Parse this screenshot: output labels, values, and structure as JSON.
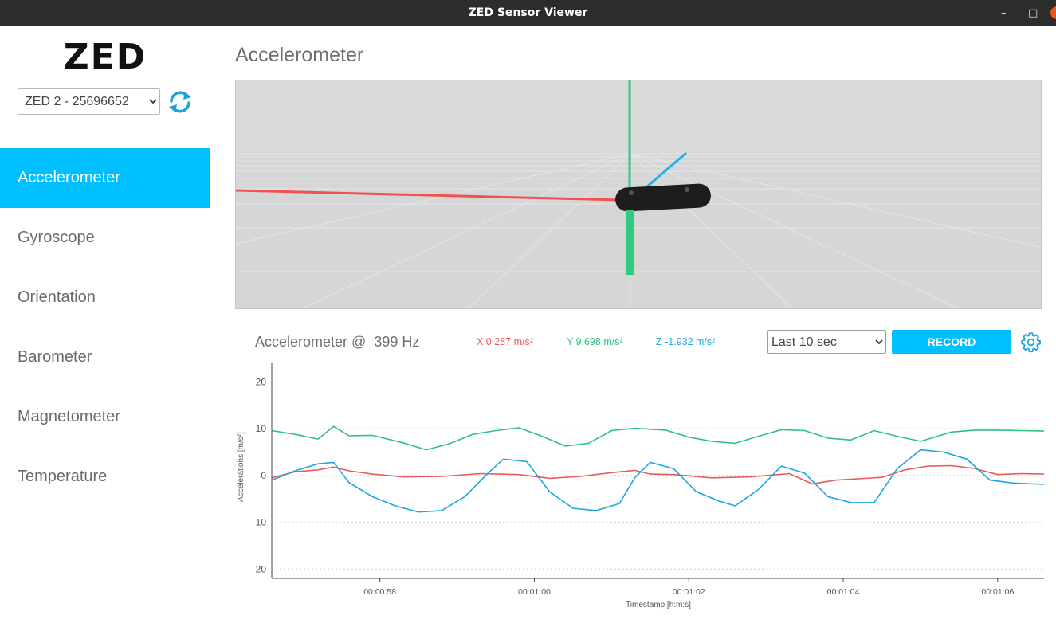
{
  "window": {
    "title": "ZED Sensor Viewer"
  },
  "sidebar": {
    "logo_text": "ZED",
    "device": {
      "selected": "ZED 2 - 25696652",
      "options": [
        "ZED 2 - 25696652"
      ]
    },
    "items": [
      {
        "label": "Accelerometer",
        "active": true
      },
      {
        "label": "Gyroscope",
        "active": false
      },
      {
        "label": "Orientation",
        "active": false
      },
      {
        "label": "Barometer",
        "active": false
      },
      {
        "label": "Magnetometer",
        "active": false
      },
      {
        "label": "Temperature",
        "active": false
      }
    ]
  },
  "main": {
    "title": "Accelerometer",
    "sensor_label": "Accelerometer @  399 Hz",
    "readouts": {
      "x": "X 0.287 m/s²",
      "y": "Y 9.698 m/s²",
      "z": "Z -1.932 m/s²"
    },
    "range": {
      "selected": "Last 10 sec",
      "options": [
        "Last 10 sec"
      ]
    },
    "record_label": "RECORD"
  },
  "colors": {
    "accent": "#00bfff",
    "x": "#e85b5b",
    "y": "#2fc17f",
    "z": "#1fa6e0"
  },
  "chart_data": {
    "type": "line",
    "xlabel": "Timestamp [h:m:s]",
    "ylabel": "Accelerations [m/s²]",
    "ylim": [
      -22,
      24
    ],
    "xlim": [
      56.6,
      66.6
    ],
    "yticks": [
      20,
      10,
      0,
      -10,
      -20
    ],
    "xticks": [
      {
        "value": 58,
        "label": "00:00:58"
      },
      {
        "value": 60,
        "label": "00:01:00"
      },
      {
        "value": 62,
        "label": "00:01:02"
      },
      {
        "value": 64,
        "label": "00:01:04"
      },
      {
        "value": 66,
        "label": "00:01:06"
      }
    ],
    "grid": true,
    "series": [
      {
        "key": "x",
        "color": "#e85b5b",
        "x": [
          56.6,
          56.9,
          57.2,
          57.4,
          57.6,
          57.9,
          58.3,
          58.8,
          59.3,
          59.8,
          60.2,
          60.6,
          61.0,
          61.3,
          61.5,
          61.8,
          62.3,
          62.8,
          63.3,
          63.6,
          63.9,
          64.2,
          64.5,
          64.8,
          65.1,
          65.4,
          65.7,
          66.0,
          66.3,
          66.6
        ],
        "y": [
          -0.5,
          0.8,
          1.2,
          1.8,
          1.0,
          0.3,
          -0.3,
          -0.2,
          0.4,
          0.2,
          -0.6,
          -0.2,
          0.6,
          1.1,
          0.3,
          0.2,
          -0.5,
          -0.3,
          0.4,
          -1.8,
          -1.0,
          -0.7,
          -0.4,
          1.2,
          2.0,
          2.1,
          1.5,
          0.2,
          0.4,
          0.3
        ]
      },
      {
        "key": "y",
        "color": "#2fc17f",
        "x": [
          56.6,
          56.9,
          57.2,
          57.4,
          57.6,
          57.9,
          58.3,
          58.6,
          58.9,
          59.2,
          59.5,
          59.8,
          60.1,
          60.4,
          60.7,
          61.0,
          61.3,
          61.7,
          62.0,
          62.3,
          62.6,
          62.9,
          63.2,
          63.5,
          63.8,
          64.1,
          64.4,
          64.7,
          65.0,
          65.4,
          65.7,
          66.0,
          66.3,
          66.6
        ],
        "y": [
          9.6,
          8.8,
          7.8,
          10.5,
          8.5,
          8.6,
          7.0,
          5.5,
          6.8,
          8.8,
          9.6,
          10.2,
          8.4,
          6.3,
          6.9,
          9.6,
          10.1,
          9.7,
          8.2,
          7.3,
          6.9,
          8.4,
          9.8,
          9.6,
          8.0,
          7.6,
          9.6,
          8.4,
          7.3,
          9.3,
          9.7,
          9.7,
          9.6,
          9.5
        ]
      },
      {
        "key": "z",
        "color": "#1fa6e0",
        "x": [
          56.6,
          56.9,
          57.2,
          57.4,
          57.6,
          57.9,
          58.2,
          58.5,
          58.8,
          59.1,
          59.4,
          59.6,
          59.9,
          60.2,
          60.5,
          60.8,
          61.1,
          61.3,
          61.5,
          61.8,
          62.1,
          62.4,
          62.6,
          62.9,
          63.2,
          63.5,
          63.8,
          64.1,
          64.4,
          64.7,
          65.0,
          65.3,
          65.6,
          65.9,
          66.2,
          66.6
        ],
        "y": [
          -1.0,
          1.0,
          2.5,
          2.8,
          -1.5,
          -4.5,
          -6.5,
          -7.8,
          -7.5,
          -4.5,
          0.5,
          3.5,
          3.0,
          -3.5,
          -7.0,
          -7.5,
          -6.0,
          -0.5,
          2.8,
          1.5,
          -3.5,
          -5.5,
          -6.5,
          -3.0,
          2.0,
          0.5,
          -4.5,
          -5.8,
          -5.8,
          1.5,
          5.5,
          5.0,
          3.5,
          -1.0,
          -1.6,
          -1.9
        ]
      }
    ]
  }
}
